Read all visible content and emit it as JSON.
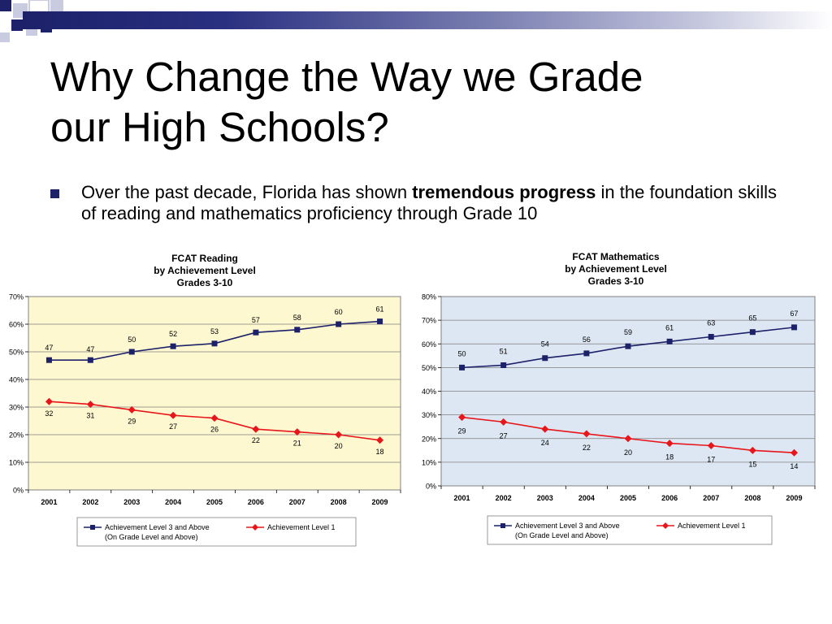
{
  "slide": {
    "title_line1": "Why Change the Way we Grade",
    "title_line2": "our High Schools?",
    "bullet": {
      "text_before": "Over the past decade, Florida has shown ",
      "text_bold": "tremendous progress",
      "text_after": " in the foundation skills of reading and mathematics proficiency through Grade 10"
    }
  },
  "colors": {
    "series_high": "#1c2169",
    "series_low": "#e8161b",
    "reading_plot_bg": "#fdf8d0",
    "math_plot_bg": "#dde7f3",
    "title_bar": "#1c2169"
  },
  "chart_data": [
    {
      "type": "line",
      "title": [
        "FCAT Reading",
        "by Achievement Level",
        "Grades 3-10"
      ],
      "categories": [
        "2001",
        "2002",
        "2003",
        "2004",
        "2005",
        "2006",
        "2007",
        "2008",
        "2009"
      ],
      "ylim": [
        0,
        70
      ],
      "yticks": [
        "0%",
        "10%",
        "20%",
        "30%",
        "40%",
        "50%",
        "60%",
        "70%"
      ],
      "grid": true,
      "legend_placement": "bottom",
      "series": [
        {
          "name": "Achievement Level 3 and Above (On Grade Level and Above)",
          "legend_line1": "Achievement Level 3 and Above",
          "legend_line2": "(On Grade Level and Above)",
          "marker": "square",
          "values": [
            47,
            47,
            50,
            52,
            53,
            57,
            58,
            60,
            61
          ]
        },
        {
          "name": "Achievement Level 1",
          "legend_line1": "Achievement Level 1",
          "legend_line2": "",
          "marker": "diamond",
          "values": [
            32,
            31,
            29,
            27,
            26,
            22,
            21,
            20,
            18
          ]
        }
      ]
    },
    {
      "type": "line",
      "title": [
        "FCAT Mathematics",
        "by Achievement Level",
        "Grades 3-10"
      ],
      "categories": [
        "2001",
        "2002",
        "2003",
        "2004",
        "2005",
        "2006",
        "2007",
        "2008",
        "2009"
      ],
      "ylim": [
        0,
        80
      ],
      "yticks": [
        "0%",
        "10%",
        "20%",
        "30%",
        "40%",
        "50%",
        "60%",
        "70%",
        "80%"
      ],
      "grid": true,
      "legend_placement": "bottom",
      "series": [
        {
          "name": "Achievement Level 3 and Above (On Grade Level and Above)",
          "legend_line1": "Achievement Level 3 and Above",
          "legend_line2": "(On Grade Level and Above)",
          "marker": "square",
          "values": [
            50,
            51,
            54,
            56,
            59,
            61,
            63,
            65,
            67
          ]
        },
        {
          "name": "Achievement Level 1",
          "legend_line1": "Achievement Level 1",
          "legend_line2": "",
          "marker": "diamond",
          "values": [
            29,
            27,
            24,
            22,
            20,
            18,
            17,
            15,
            14
          ]
        }
      ]
    }
  ]
}
